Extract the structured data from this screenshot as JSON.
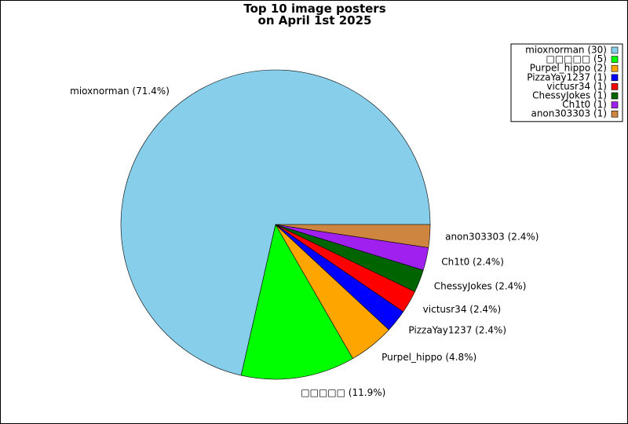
{
  "chart_data": {
    "type": "pie",
    "title": "Top 10 image posters\non April 1st 2025",
    "categories": [
      "mioxnorman",
      "□□□□□",
      "Purpel_hippo",
      "PizzaYay1237",
      "victusr34",
      "ChessyJokes",
      "Ch1t0",
      "anon303303"
    ],
    "values": [
      30,
      5,
      2,
      1,
      1,
      1,
      1,
      1
    ],
    "value_labels": [
      "mioxnorman (71.4%)",
      "□□□□□ (11.9%)",
      "Purpel_hippo (4.8%)",
      "PizzaYay1237 (2.4%)",
      "victusr34 (2.4%)",
      "ChessyJokes (2.4%)",
      "Ch1t0 (2.4%)",
      "anon303303 (2.4%)"
    ],
    "legend_labels": [
      "mioxnorman (30)",
      "□□□□□ (5)",
      "Purpel_hippo (2)",
      "PizzaYay1237 (1)",
      "victusr34 (1)",
      "ChessyJokes (1)",
      "Ch1t0 (1)",
      "anon303303 (1)"
    ],
    "colors": [
      "#87ceeb",
      "#00ff00",
      "#ffa500",
      "#0000ff",
      "#ff0000",
      "#006400",
      "#a020f0",
      "#cd853f"
    ],
    "legend": "upper right"
  }
}
